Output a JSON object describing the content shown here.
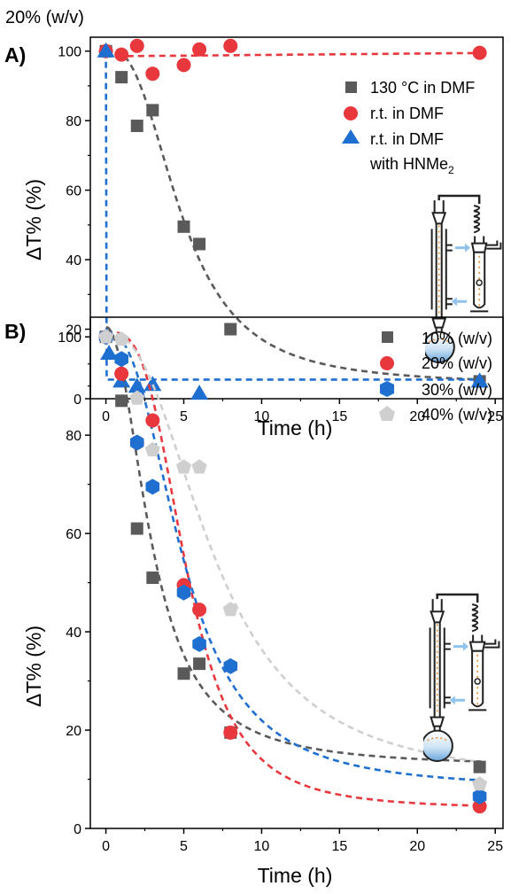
{
  "chart_data": [
    {
      "id": "A",
      "type": "scatter",
      "panel_label": "A)",
      "title": "20% (w/v)",
      "xlabel": "Time (h)",
      "ylabel": "ΔT% (%)",
      "xlim": [
        -1,
        25.5
      ],
      "ylim": [
        0,
        104
      ],
      "xticks": [
        0,
        5,
        10,
        15,
        20,
        25
      ],
      "yticks": [
        0,
        20,
        40,
        60,
        80,
        100
      ],
      "legend_position": "top-right",
      "series": [
        {
          "name": "130 °C in DMF",
          "marker": "square",
          "color": "#5a5a5a",
          "x": [
            0,
            1,
            2,
            3,
            5,
            6,
            8,
            24
          ],
          "y": [
            100,
            92.5,
            78.5,
            83,
            49.5,
            44.5,
            20,
            5
          ]
        },
        {
          "name": "r.t. in DMF",
          "marker": "circle",
          "color": "#e8383d",
          "x": [
            0,
            1,
            2,
            3,
            5,
            6,
            8,
            24
          ],
          "y": [
            100,
            99,
            101.5,
            93.5,
            96,
            100.5,
            101.5,
            99.5
          ]
        },
        {
          "name": "r.t. in DMF with HNMe2",
          "legend_lines": [
            "r.t. in DMF",
            "with HNMe",
            "2"
          ],
          "marker": "triangle",
          "color": "#1f6fd1",
          "x": [
            0,
            0.2,
            1,
            2,
            3,
            6,
            24
          ],
          "y": [
            100,
            13,
            5,
            3.5,
            4,
            1.5,
            5
          ]
        }
      ]
    },
    {
      "id": "B",
      "type": "scatter",
      "panel_label": "B)",
      "xlabel": "Time (h)",
      "ylabel": "ΔT% (%)",
      "xlim": [
        -1,
        25.5
      ],
      "ylim": [
        0,
        104
      ],
      "xticks": [
        0,
        5,
        10,
        15,
        20,
        25
      ],
      "yticks": [
        0,
        20,
        40,
        60,
        80,
        100
      ],
      "legend_position": "top-right",
      "series": [
        {
          "name": "10% (w/v)",
          "marker": "square",
          "color": "#5a5a5a",
          "x": [
            0,
            1,
            2,
            3,
            5,
            6,
            8,
            24
          ],
          "y": [
            100,
            87,
            61,
            51,
            31.5,
            33.5,
            19.5,
            12.5
          ]
        },
        {
          "name": "20% (w/v)",
          "marker": "circle",
          "color": "#e8383d",
          "x": [
            0,
            1,
            2,
            3,
            5,
            6,
            8,
            24
          ],
          "y": [
            100,
            92.5,
            78.5,
            83,
            49.5,
            44.5,
            19.5,
            4.5
          ]
        },
        {
          "name": "30% (w/v)",
          "marker": "hexagon",
          "color": "#1f6fd1",
          "x": [
            0,
            1,
            2,
            3,
            5,
            6,
            8,
            24
          ],
          "y": [
            100,
            95.5,
            78.5,
            69.5,
            48,
            37.5,
            33,
            6.5
          ]
        },
        {
          "name": "40% (w/v)",
          "marker": "pentagon",
          "color": "#cfcfcf",
          "x": [
            0,
            1,
            2,
            3,
            5,
            6,
            8,
            24
          ],
          "y": [
            100,
            99.5,
            87.5,
            77,
            73.5,
            73.5,
            44.5,
            9
          ]
        }
      ]
    }
  ]
}
